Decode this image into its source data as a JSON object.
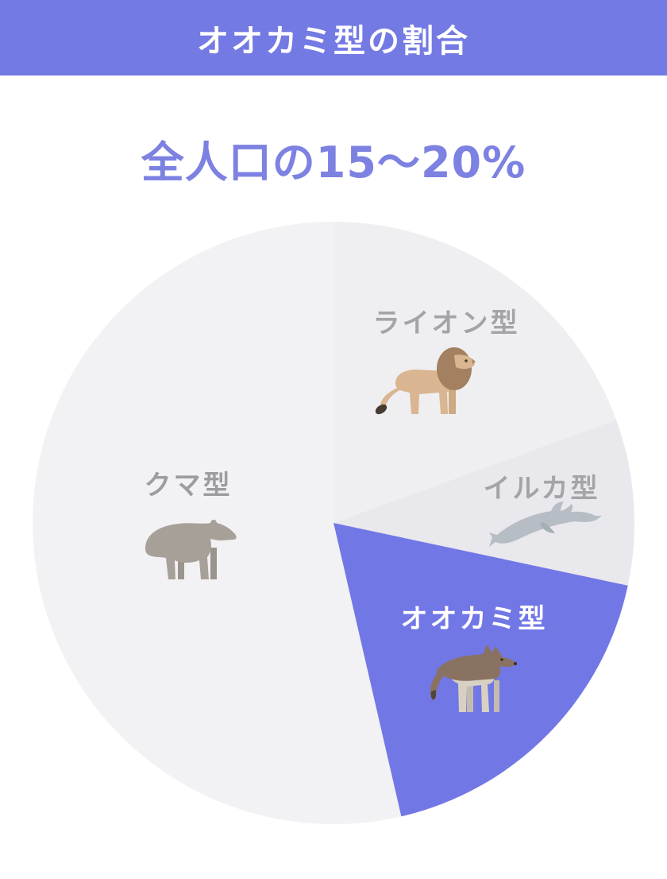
{
  "header": {
    "title": "オオカミ型の割合",
    "bg_color": "#747ae3",
    "text_color": "#ffffff"
  },
  "subtitle": {
    "text": "全人口の15〜20%",
    "color": "#7d81e2"
  },
  "chart_data": {
    "type": "pie",
    "title": "オオカミ型の割合",
    "subtitle": "全人口の15〜20%",
    "highlighted_slice": "オオカミ型",
    "highlighted_slice_value_text": "全人口の15〜20%",
    "angles_measured_clockwise_from_top": true,
    "legend_position": "labels-inside-slices",
    "slices": [
      {
        "label": "ライオン型",
        "animal": "lion",
        "start_angle_deg": 0,
        "end_angle_deg": 70,
        "percent_est": 19.4,
        "color": "#efeef1",
        "label_color": "#a4a3a7",
        "highlighted": false
      },
      {
        "label": "イルカ型",
        "animal": "dolphin",
        "start_angle_deg": 70,
        "end_angle_deg": 102,
        "percent_est": 8.9,
        "color": "#e9e8ec",
        "label_color": "#a4a3a7",
        "highlighted": false
      },
      {
        "label": "オオカミ型",
        "animal": "wolf",
        "start_angle_deg": 102,
        "end_angle_deg": 167,
        "percent_est": 18.1,
        "color": "#7277e6",
        "label_color": "#ffffff",
        "highlighted": true
      },
      {
        "label": "クマ型",
        "animal": "bear",
        "start_angle_deg": 167,
        "end_angle_deg": 360,
        "percent_est": 53.6,
        "color": "#f2f1f3",
        "label_color": "#9d9ca0",
        "highlighted": false
      }
    ]
  }
}
